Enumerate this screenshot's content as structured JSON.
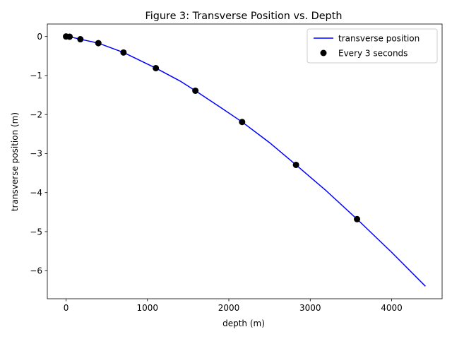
{
  "chart_data": {
    "type": "line",
    "title": "Figure 3: Transverse Position vs. Depth",
    "xlabel": "depth (m)",
    "ylabel": "transverse position (m)",
    "xlim": [
      -230,
      4620
    ],
    "ylim": [
      -6.72,
      0.32
    ],
    "xticks": [
      0,
      1000,
      2000,
      3000,
      4000
    ],
    "yticks": [
      0,
      -1,
      -2,
      -3,
      -4,
      -5,
      -6
    ],
    "xtick_labels": [
      "0",
      "1000",
      "2000",
      "3000",
      "4000"
    ],
    "ytick_labels": [
      "0",
      "−1",
      "−2",
      "−3",
      "−4",
      "−5",
      "−6"
    ],
    "grid": false,
    "legend_position": "top-right",
    "series": [
      {
        "name": "transverse position",
        "kind": "line",
        "color": "#0000ff",
        "x": [
          0,
          44,
          176,
          397,
          706,
          1103,
          1400,
          1589,
          1900,
          2163,
          2500,
          2825,
          3200,
          3575,
          4000,
          4415
        ],
        "y": [
          0,
          -0.005,
          -0.07,
          -0.17,
          -0.41,
          -0.81,
          -1.14,
          -1.39,
          -1.82,
          -2.19,
          -2.72,
          -3.29,
          -3.96,
          -4.68,
          -5.53,
          -6.4
        ]
      },
      {
        "name": "Every 3 seconds",
        "kind": "scatter",
        "color": "#000000",
        "x": [
          0,
          44,
          176,
          397,
          706,
          1103,
          1589,
          2163,
          2825,
          3575
        ],
        "y": [
          0,
          -0.005,
          -0.07,
          -0.17,
          -0.41,
          -0.81,
          -1.39,
          -2.19,
          -3.29,
          -4.68
        ]
      }
    ]
  }
}
